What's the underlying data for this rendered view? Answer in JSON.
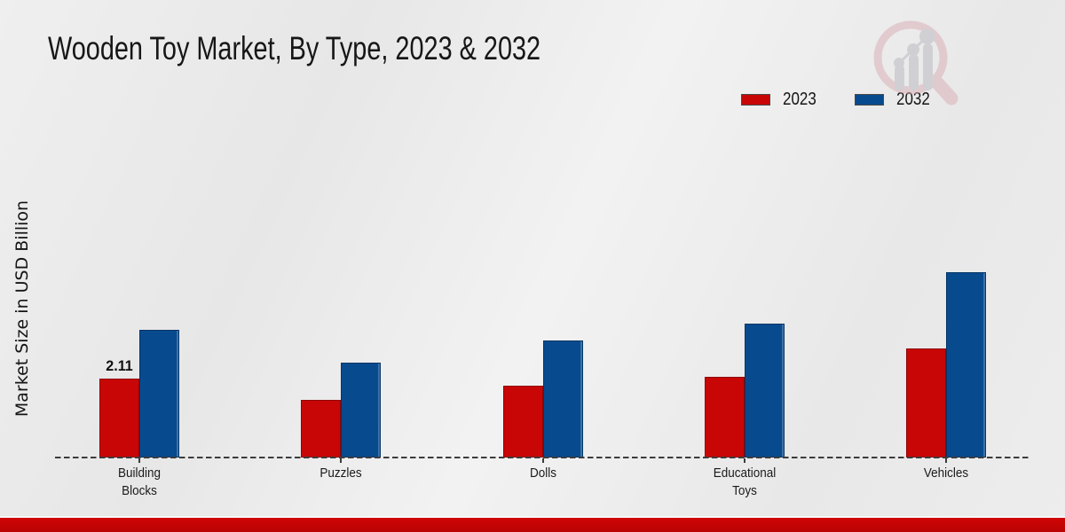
{
  "chart_data": {
    "type": "bar",
    "title": "Wooden Toy Market, By Type, 2023 & 2032",
    "xlabel": "",
    "ylabel": "Market Size in USD Billion",
    "categories": [
      "Building Blocks",
      "Puzzles",
      "Dolls",
      "Educational Toys",
      "Vehicles"
    ],
    "series": [
      {
        "name": "2023",
        "color": "#c80606",
        "values": [
          2.11,
          1.55,
          1.92,
          2.16,
          2.92
        ]
      },
      {
        "name": "2032",
        "color": "#084a8e",
        "values": [
          3.41,
          2.54,
          3.13,
          3.58,
          4.96
        ]
      }
    ],
    "annotations": [
      {
        "category_index": 0,
        "series_index": 0,
        "text": "2.11"
      }
    ],
    "legend_position": "top-right",
    "grid": false,
    "baseline_style": "dashed",
    "ylim": [
      0,
      5.5
    ]
  },
  "branding": {
    "logo_icon": "magnifier-growth-chart-watermark-icon"
  },
  "footer": {
    "bar_color": "#c00404"
  }
}
